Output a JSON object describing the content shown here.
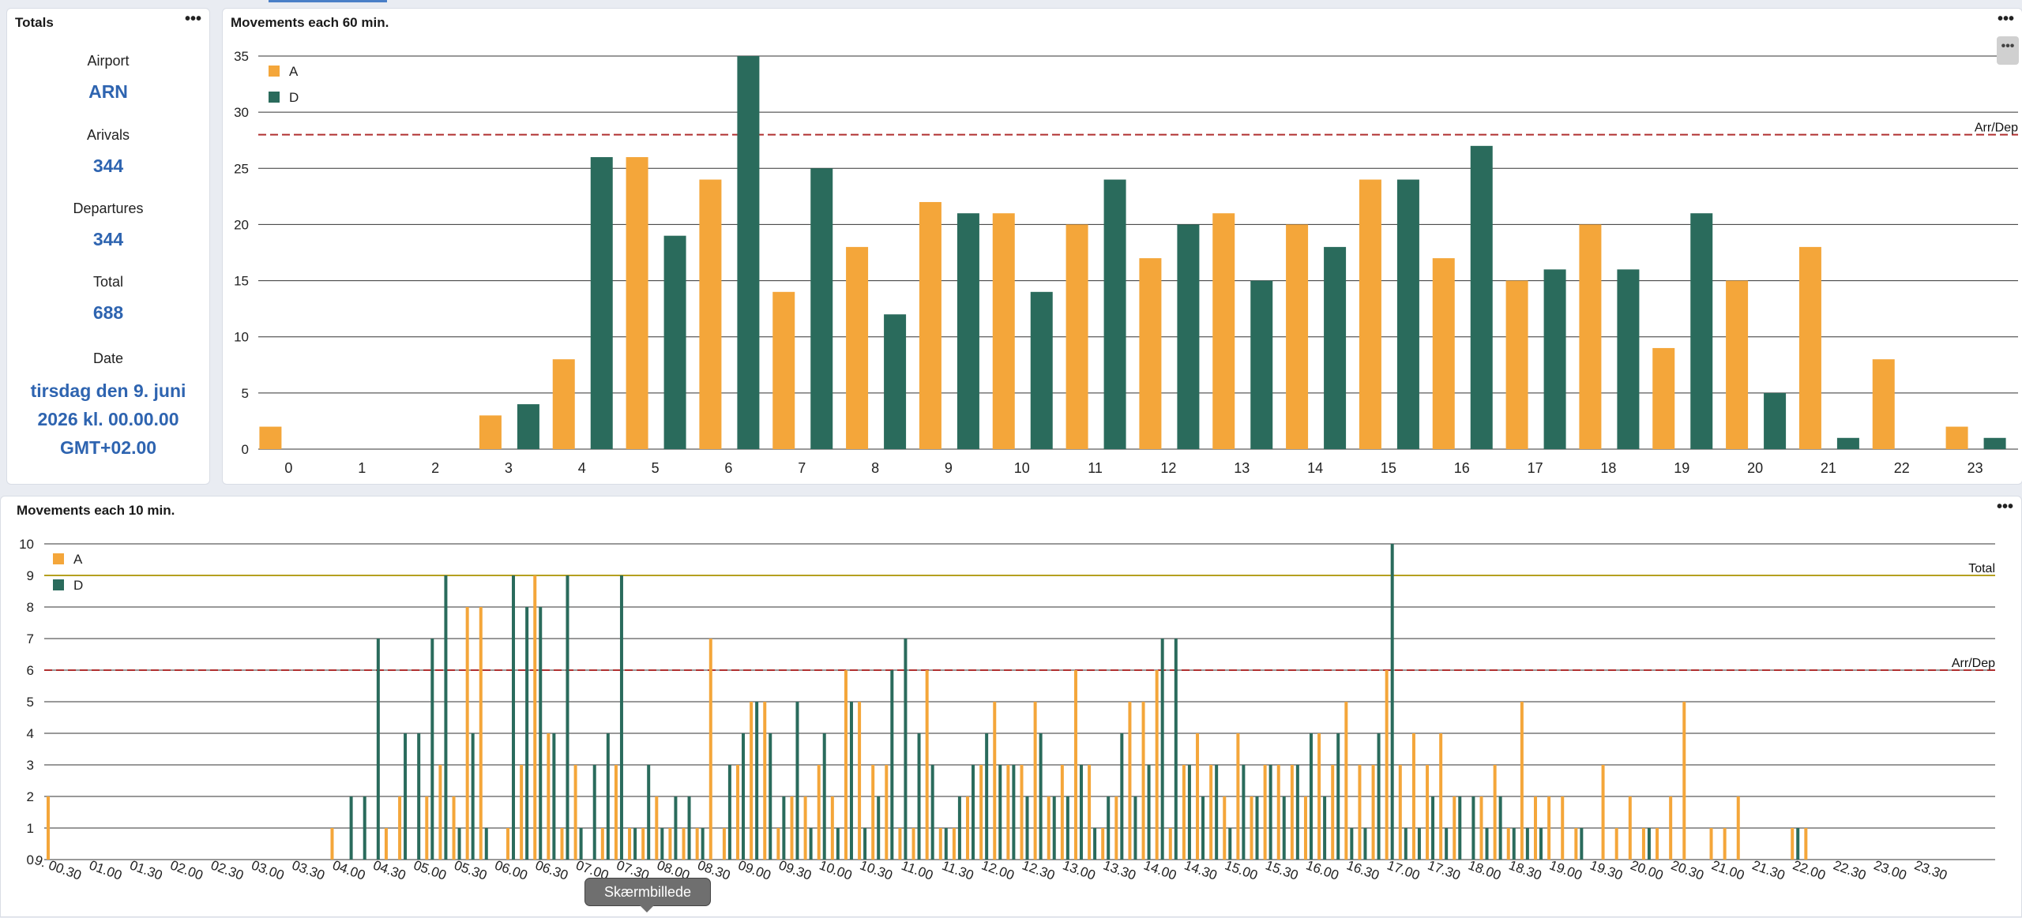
{
  "totals": {
    "title": "Totals",
    "airport_label": "Airport",
    "airport_value": "ARN",
    "arrivals_label": "Arivals",
    "arrivals_value": "344",
    "departures_label": "Departures",
    "departures_value": "344",
    "total_label": "Total",
    "total_value": "688",
    "date_label": "Date",
    "date_line1": "tirsdag den 9. juni",
    "date_line2": "2026 kl. 00.00.00",
    "date_line3": "GMT+02.00"
  },
  "menu_icon": "more-dots-icon",
  "tooltip": "Skærmbillede",
  "colors": {
    "arrivals": "#f4a63a",
    "departures": "#2a6b5c",
    "arrdep_line": "#b03030",
    "total_line": "#b5a020"
  },
  "chart_data": [
    {
      "type": "bar",
      "title": "Movements each 60 min.",
      "categories": [
        "0",
        "1",
        "2",
        "3",
        "4",
        "5",
        "6",
        "7",
        "8",
        "9",
        "10",
        "11",
        "12",
        "13",
        "14",
        "15",
        "16",
        "17",
        "18",
        "19",
        "20",
        "21",
        "22",
        "23"
      ],
      "series": [
        {
          "name": "A",
          "values": [
            2,
            0,
            0,
            3,
            8,
            26,
            24,
            14,
            18,
            22,
            21,
            20,
            17,
            21,
            20,
            24,
            17,
            15,
            20,
            9,
            15,
            18,
            8,
            2
          ]
        },
        {
          "name": "D",
          "values": [
            0,
            0,
            0,
            4,
            26,
            19,
            35,
            25,
            12,
            21,
            14,
            24,
            20,
            15,
            18,
            24,
            27,
            16,
            16,
            21,
            5,
            1,
            0,
            1
          ]
        }
      ],
      "ylim": [
        0,
        35
      ],
      "yticks": [
        0,
        5,
        10,
        15,
        20,
        25,
        30,
        35
      ],
      "reference_lines": [
        {
          "label": "Arr/Dep",
          "value": 28
        }
      ],
      "legend": "top-left"
    },
    {
      "type": "bar",
      "title": "Movements each 10 min.",
      "xtick_labels": [
        "9. 00.30",
        "01.00",
        "01.30",
        "02.00",
        "02.30",
        "03.00",
        "03.30",
        "04.00",
        "04.30",
        "05.00",
        "05.30",
        "06.00",
        "06.30",
        "07.00",
        "07.30",
        "08.00",
        "08.30",
        "09.00",
        "09.30",
        "10.00",
        "10.30",
        "11.00",
        "11.30",
        "12.00",
        "12.30",
        "13.00",
        "13.30",
        "14.00",
        "14.30",
        "15.00",
        "15.30",
        "16.00",
        "16.30",
        "17.00",
        "17.30",
        "18.00",
        "18.30",
        "19.00",
        "19.30",
        "20.00",
        "20.30",
        "21.00",
        "21.30",
        "22.00",
        "22.30",
        "23.00",
        "23.30"
      ],
      "series": [
        {
          "name": "A",
          "values": [
            2,
            0,
            0,
            0,
            0,
            0,
            0,
            0,
            0,
            0,
            0,
            0,
            0,
            0,
            0,
            0,
            0,
            0,
            0,
            0,
            0,
            1,
            0,
            0,
            0,
            1,
            2,
            0,
            2,
            3,
            2,
            8,
            8,
            0,
            1,
            3,
            9,
            4,
            1,
            3,
            0,
            1,
            3,
            1,
            1,
            2,
            1,
            1,
            1,
            7,
            1,
            3,
            5,
            5,
            1,
            2,
            2,
            3,
            2,
            6,
            5,
            3,
            3,
            1,
            1,
            6,
            1,
            1,
            2,
            3,
            5,
            3,
            3,
            5,
            2,
            3,
            6,
            3,
            1,
            2,
            5,
            5,
            6,
            1,
            3,
            4,
            3,
            2,
            4,
            2,
            3,
            3,
            3,
            2,
            4,
            3,
            5,
            3,
            3,
            6,
            3,
            4,
            3,
            4,
            2,
            0,
            2,
            3,
            1,
            5,
            2,
            2,
            2,
            1,
            0,
            3,
            1,
            2,
            1,
            1,
            2,
            5,
            0,
            1,
            1,
            2,
            0,
            0,
            0,
            1,
            1,
            0
          ],
          "note": ""
        },
        {
          "name": "D",
          "values": [
            0,
            0,
            0,
            0,
            0,
            0,
            0,
            0,
            0,
            0,
            0,
            0,
            0,
            0,
            0,
            0,
            0,
            0,
            0,
            0,
            0,
            0,
            2,
            2,
            7,
            0,
            4,
            4,
            7,
            9,
            1,
            4,
            1,
            0,
            9,
            8,
            8,
            4,
            9,
            1,
            3,
            4,
            9,
            1,
            3,
            1,
            2,
            2,
            1,
            0,
            3,
            4,
            5,
            4,
            2,
            5,
            1,
            4,
            1,
            5,
            1,
            2,
            6,
            7,
            4,
            3,
            1,
            2,
            3,
            4,
            3,
            3,
            2,
            4,
            2,
            2,
            3,
            1,
            2,
            4,
            2,
            3,
            7,
            7,
            3,
            2,
            3,
            1,
            3,
            2,
            3,
            2,
            3,
            4,
            2,
            4,
            1,
            1,
            4,
            10,
            1,
            1,
            2,
            1,
            2,
            2,
            1,
            2,
            1,
            1,
            1,
            0,
            0,
            1,
            0,
            0,
            0,
            0,
            1,
            0,
            0,
            0,
            0,
            0,
            0,
            0,
            0,
            0,
            0,
            1,
            0,
            0
          ]
        }
      ],
      "ylim": [
        0,
        10
      ],
      "yticks": [
        0,
        1,
        2,
        3,
        4,
        5,
        6,
        7,
        8,
        9,
        10
      ],
      "reference_lines": [
        {
          "label": "Total",
          "value": 9
        },
        {
          "label": "Arr/Dep",
          "value": 6
        }
      ],
      "legend": "top-left"
    }
  ]
}
